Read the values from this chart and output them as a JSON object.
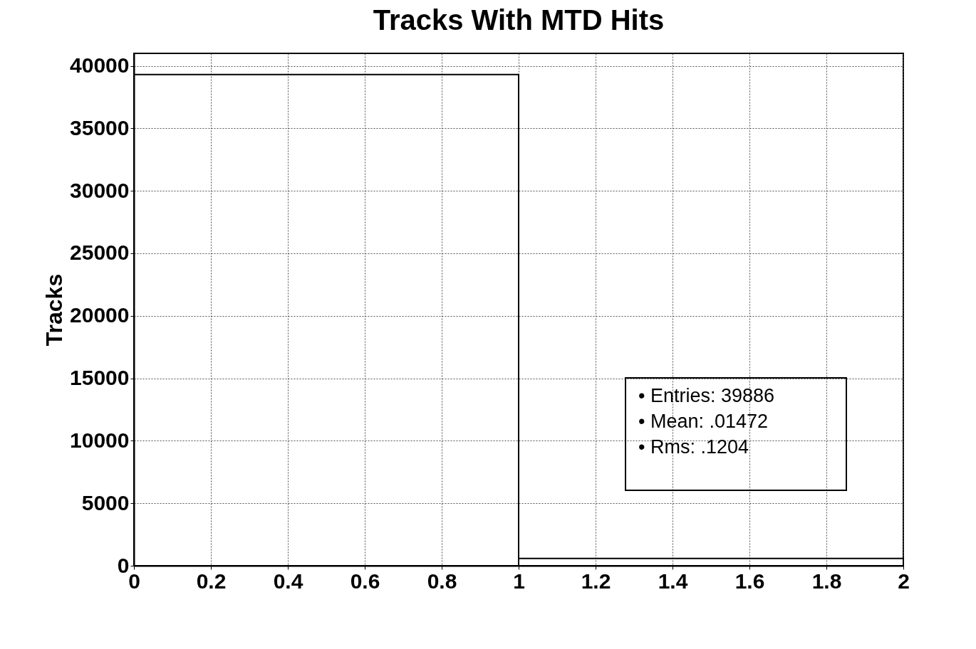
{
  "chart_data": {
    "type": "histogram",
    "title": "Tracks With MTD Hits",
    "ylabel": "Tracks",
    "bins": [
      0,
      1,
      2
    ],
    "values": [
      39300,
      590
    ],
    "color": "#000000",
    "xlim": [
      0,
      2
    ],
    "xticks": [
      0,
      0.2,
      0.4,
      0.6,
      0.8,
      1,
      1.2,
      1.4,
      1.6,
      1.8,
      2
    ],
    "ylim": [
      0,
      41000
    ],
    "yticks": [
      0,
      5000,
      10000,
      15000,
      20000,
      25000,
      30000,
      35000,
      40000
    ],
    "grid": true,
    "annotations": [
      "• Entries: 39886",
      "• Mean: .01472",
      "• Rms: .1204"
    ]
  }
}
